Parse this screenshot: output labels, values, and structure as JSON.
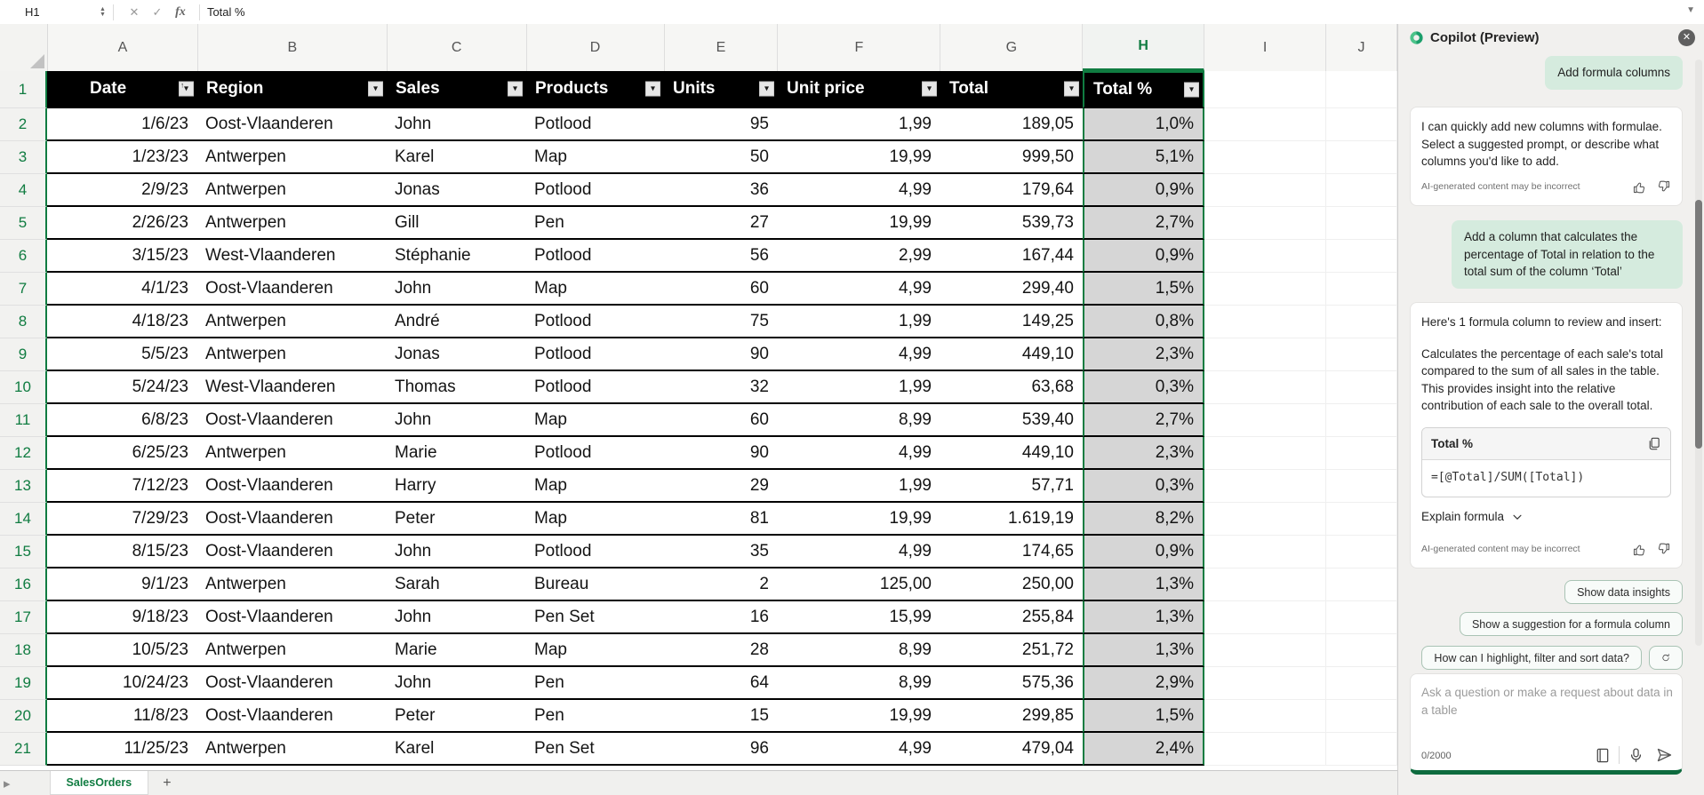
{
  "formula_bar": {
    "name_box": "H1",
    "value": "Total %"
  },
  "grid": {
    "column_letters": [
      "A",
      "B",
      "C",
      "D",
      "E",
      "F",
      "G",
      "H",
      "I",
      "J"
    ],
    "selected_column": "H"
  },
  "table": {
    "headers": [
      "Date",
      "Region",
      "Sales",
      "Products",
      "Units",
      "Unit price",
      "Total",
      "Total %"
    ],
    "rows": [
      [
        "1/6/23",
        "Oost-Vlaanderen",
        "John",
        "Potlood",
        "95",
        "1,99",
        "189,05",
        "1,0%"
      ],
      [
        "1/23/23",
        "Antwerpen",
        "Karel",
        "Map",
        "50",
        "19,99",
        "999,50",
        "5,1%"
      ],
      [
        "2/9/23",
        "Antwerpen",
        "Jonas",
        "Potlood",
        "36",
        "4,99",
        "179,64",
        "0,9%"
      ],
      [
        "2/26/23",
        "Antwerpen",
        "Gill",
        "Pen",
        "27",
        "19,99",
        "539,73",
        "2,7%"
      ],
      [
        "3/15/23",
        "West-Vlaanderen",
        "Stéphanie",
        "Potlood",
        "56",
        "2,99",
        "167,44",
        "0,9%"
      ],
      [
        "4/1/23",
        "Oost-Vlaanderen",
        "John",
        "Map",
        "60",
        "4,99",
        "299,40",
        "1,5%"
      ],
      [
        "4/18/23",
        "Antwerpen",
        "André",
        "Potlood",
        "75",
        "1,99",
        "149,25",
        "0,8%"
      ],
      [
        "5/5/23",
        "Antwerpen",
        "Jonas",
        "Potlood",
        "90",
        "4,99",
        "449,10",
        "2,3%"
      ],
      [
        "5/24/23",
        "West-Vlaanderen",
        "Thomas",
        "Potlood",
        "32",
        "1,99",
        "63,68",
        "0,3%"
      ],
      [
        "6/8/23",
        "Oost-Vlaanderen",
        "John",
        "Map",
        "60",
        "8,99",
        "539,40",
        "2,7%"
      ],
      [
        "6/25/23",
        "Antwerpen",
        "Marie",
        "Potlood",
        "90",
        "4,99",
        "449,10",
        "2,3%"
      ],
      [
        "7/12/23",
        "Oost-Vlaanderen",
        "Harry",
        "Map",
        "29",
        "1,99",
        "57,71",
        "0,3%"
      ],
      [
        "7/29/23",
        "Oost-Vlaanderen",
        "Peter",
        "Map",
        "81",
        "19,99",
        "1.619,19",
        "8,2%"
      ],
      [
        "8/15/23",
        "Oost-Vlaanderen",
        "John",
        "Potlood",
        "35",
        "4,99",
        "174,65",
        "0,9%"
      ],
      [
        "9/1/23",
        "Antwerpen",
        "Sarah",
        "Bureau",
        "2",
        "125,00",
        "250,00",
        "1,3%"
      ],
      [
        "9/18/23",
        "Oost-Vlaanderen",
        "John",
        "Pen Set",
        "16",
        "15,99",
        "255,84",
        "1,3%"
      ],
      [
        "10/5/23",
        "Antwerpen",
        "Marie",
        "Map",
        "28",
        "8,99",
        "251,72",
        "1,3%"
      ],
      [
        "10/24/23",
        "Oost-Vlaanderen",
        "John",
        "Pen",
        "64",
        "8,99",
        "575,36",
        "2,9%"
      ],
      [
        "11/8/23",
        "Oost-Vlaanderen",
        "Peter",
        "Pen",
        "15",
        "19,99",
        "299,85",
        "1,5%"
      ],
      [
        "11/25/23",
        "Antwerpen",
        "Karel",
        "Pen Set",
        "96",
        "4,99",
        "479,04",
        "2,4%"
      ]
    ]
  },
  "sheet_tabs": {
    "active": "SalesOrders",
    "add_label": "+"
  },
  "copilot": {
    "title": "Copilot (Preview)",
    "user_prompt_1": "Add formula columns",
    "reply_1": {
      "text": "I can quickly add new columns with formulae. Select a suggested prompt, or describe what columns you'd like to add.",
      "disclaimer": "AI-generated content may be incorrect"
    },
    "user_prompt_2": "Add a column that calculates the percentage of Total in relation to the total sum of the column ‘Total’",
    "reply_2": {
      "intro": "Here's 1 formula column to review and insert:",
      "description": "Calculates the percentage of each sale's total compared to the sum of all sales in the table. This provides insight into the relative contribution of each sale to the overall total.",
      "formula_title": "Total %",
      "formula": "=[@Total]/SUM([Total])",
      "explain_label": "Explain formula",
      "disclaimer": "AI-generated content may be incorrect"
    },
    "suggestion_chips": [
      "Show data insights",
      "Show a suggestion for a formula column",
      "How can I highlight, filter and sort data?"
    ],
    "input": {
      "placeholder": "Ask a question or make a request about data in a table",
      "counter": "0/2000"
    }
  },
  "colors": {
    "accent_green": "#107C41",
    "table_header_bg": "#000000",
    "selection_fill": "#D6D6D6",
    "bubble_green": "#D5EBDE",
    "panel_bg": "#F1F0EE"
  }
}
